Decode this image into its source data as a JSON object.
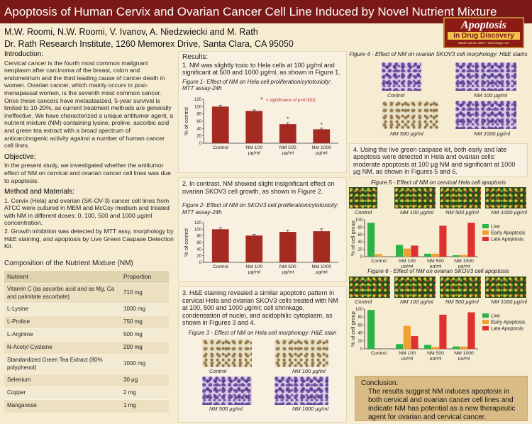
{
  "title": "Apoptosis of Human Cervix and Ovarian Cancer Cell Line Induced by Novel Nutrient Mixture",
  "authors": "M.W. Roomi, N.W. Roomi, V. Ivanov, A. Niedzwiecki and M. Rath",
  "institute": "Dr. Rath Research Institute, 1260 Memorex Drive, Santa Clara, CA 95050",
  "logo": {
    "line1": "Apoptosis",
    "line2": "in Drug Discovery",
    "line3": "March 20-21, 2007 • San Diego, CA"
  },
  "intro": {
    "heading": "Introduction:",
    "text": "Cervical cancer is the fourth most common malignant neoplasm after carcinoma of the breast, colon and endometrium and the third leading cause of cancer death in women. Ovarian cancer, which mainly occurs in post-menapausal women, is the seventh most common cancer. Once these cancers have metastasized, 5-year survival is limited to 10-20%, as current treatment methods are generally ineffective. We have characterized a unique antitumor agent, a nutrient mixture (NM) containing lysine, proline, ascorbic acid and green tea extract with a broad spectrum of anticarcinogenic activity against a number of human cancer cell lines."
  },
  "objective": {
    "heading": "Objective:",
    "text": "In the present study, we investigated whether the antitumor effect of NM on cervical and ovarian cancer cell lines was due to apoptosis."
  },
  "methods": {
    "heading": "Method and Materials:",
    "p1": "1. Cervix (Hela) and ovarian (SK-OV-3) cancer cell lines from ATCC were cultured in MEM and McCoy medium and treated with NM in different doses: 0, 100, 500 and 1000 µg/ml concentration.",
    "p2": "2. Growth inhibition was detected by MTT assy, morphology by H&E staining, and apoptosis by Live Green Caspase Detection Kit."
  },
  "composition": {
    "title": "Composition of the Nutrient Mixture (NM)",
    "col_nutrient": "Nutrient",
    "col_proportion": "Proportion",
    "rows": [
      {
        "name": "Vitamin C (as ascorbic acid and as Mg, Ca and palmitate ascorbate)",
        "amount": "710 mg"
      },
      {
        "name": "L-Lysine",
        "amount": "1000 mg"
      },
      {
        "name": "L-Proline",
        "amount": "750 mg"
      },
      {
        "name": "L-Arginine",
        "amount": "500 mg"
      },
      {
        "name": "N-Acetyl Cysteine",
        "amount": "200 mg"
      },
      {
        "name": "Standardized Green Tea Extract (80% polyphenol)",
        "amount": "1000 mg"
      },
      {
        "name": "Selenium",
        "amount": "30 µg"
      },
      {
        "name": "Copper",
        "amount": "2 mg"
      },
      {
        "name": "Manganese",
        "amount": "1 mg"
      }
    ]
  },
  "results": {
    "heading": "Results:",
    "r1": "1. NM was slightly toxic to Hela cells at 100 µg/ml and significant at 500 and 1000 µg/ml, as shown in Figure 1.",
    "fig1_caption": "Figure 1- Effect of NM on Hela cell proliferation/cytotoxicity: MTT assay-24h",
    "signif_star": "*",
    "signif_text": "= significance of p=0.0001",
    "r2": "2. In contrast, NM showed slight insignificant effect on ovarian SKOV3 cell growth, as shown in Figure 2.",
    "fig2_caption": "Figure 2- Effect of NM on  SKOV3 cell proliferation/cytotoxicity: MTT assay-24h",
    "r3": "3. H&E staining revealed a similar apoptotic pattern in cervical Hela and ovarian SKOV3 cells treated with NM at 100, 500 and 1000 µg/ml; cell shrinkage, condensation of nuclei, and acidophilic cytoplasm, as shown in Figures 3 and 4.",
    "fig3_caption": "Figure 3 - Effect of NM on Hela cell morphology: H&E stain",
    "fig3_labels": [
      "Control",
      "NM 100 µg/ml",
      "NM 500 µg/ml",
      "NM 1000 µg/ml"
    ],
    "fig4_caption": "Figure 4 - Effect of NM on ovarian SKOV3 cell morphology: H&E stains",
    "fig4_labels": [
      "Control",
      "NM 100 µg/ml",
      "NM 500 µg/ml",
      "NM 1000 µg/ml"
    ],
    "r4": "4. Using the live green caspase kit, both early and late apoptosis were detected in Hela and ovarian cells: moderate apoptosis at 100 µg NM and significant at 1000 µg NM, as shown in Figures 5 and 6.",
    "fig5_caption": "Figure 5 - Effect of NM on cervical Hela cell apoptosis",
    "fig5_labels": [
      "Control",
      "NM 100 µg/ml",
      "NM 500 µg/ml",
      "NM 1000 µg/ml"
    ],
    "fig6_caption": "Figure 6 - Effect of NM on ovarian SKOV3 cell apoptosis",
    "fig6_labels": [
      "Control",
      "NM 100 µg/ml",
      "NM 500 µg/ml",
      "NM 1000 µg/ml"
    ]
  },
  "conclusion": {
    "heading": "Conclusion:",
    "text": "The results suggest NM induces apoptosis in both cervical and ovarian cancer cell lines and indicate NM has potential as a new therapeutic agent for ovarian and cervical cancer."
  },
  "chart_data": [
    {
      "id": "fig1",
      "type": "bar",
      "categories": [
        "Control",
        "NM 100\nµg/ml",
        "NM 500\nµg/ml",
        "NM 1000\nµg/ml"
      ],
      "values": [
        100,
        88,
        52,
        38
      ],
      "errors": [
        4,
        3,
        4,
        3
      ],
      "significant": [
        false,
        false,
        true,
        true
      ],
      "ylabel": "% of control",
      "ylim": [
        0,
        120
      ],
      "yticks": [
        0,
        20,
        40,
        60,
        80,
        100,
        120
      ],
      "color": "#a52a22"
    },
    {
      "id": "fig2",
      "type": "bar",
      "categories": [
        "Control",
        "NM 100\nµg/ml",
        "NM 500\nµg/ml",
        "NM 1000\nµg/ml"
      ],
      "values": [
        100,
        81,
        92,
        94
      ],
      "errors": [
        5,
        4,
        5,
        7
      ],
      "ylabel": "% of control",
      "ylim": [
        0,
        120
      ],
      "yticks": [
        0,
        20,
        40,
        60,
        80,
        100,
        120
      ],
      "color": "#a52a22"
    },
    {
      "id": "fig5",
      "type": "bar",
      "categories": [
        "Control",
        "NM 100\nµg/ml",
        "NM 500\nµg/ml",
        "NM 1000\nµg/ml"
      ],
      "series": [
        {
          "name": "Live",
          "values": [
            92,
            32,
            8,
            4
          ],
          "color": "#2fb24a"
        },
        {
          "name": "Early Apoptosis",
          "values": [
            7,
            22,
            8,
            5
          ],
          "color": "#f0a030"
        },
        {
          "name": "Late Apoptosis",
          "values": [
            0,
            30,
            84,
            92
          ],
          "color": "#e03030"
        }
      ],
      "ylabel": "% of cell group",
      "ylim": [
        0,
        100
      ],
      "yticks": [
        0,
        20,
        40,
        60,
        80,
        100
      ],
      "legend": "right"
    },
    {
      "id": "fig6",
      "type": "bar",
      "categories": [
        "Control",
        "NM 100\nµg/ml",
        "NM 500\nµg/ml",
        "NM 1000\nµg/ml"
      ],
      "series": [
        {
          "name": "Live",
          "values": [
            98,
            12,
            10,
            6
          ],
          "color": "#2fb24a"
        },
        {
          "name": "Early Apoptosis",
          "values": [
            0,
            58,
            5,
            6
          ],
          "color": "#f0a030"
        },
        {
          "name": "Late Apoptosis",
          "values": [
            0,
            32,
            86,
            92
          ],
          "color": "#e03030"
        }
      ],
      "ylabel": "% of cell group",
      "ylim": [
        0,
        100
      ],
      "yticks": [
        0,
        20,
        40,
        60,
        80,
        100
      ],
      "legend": "right"
    }
  ]
}
